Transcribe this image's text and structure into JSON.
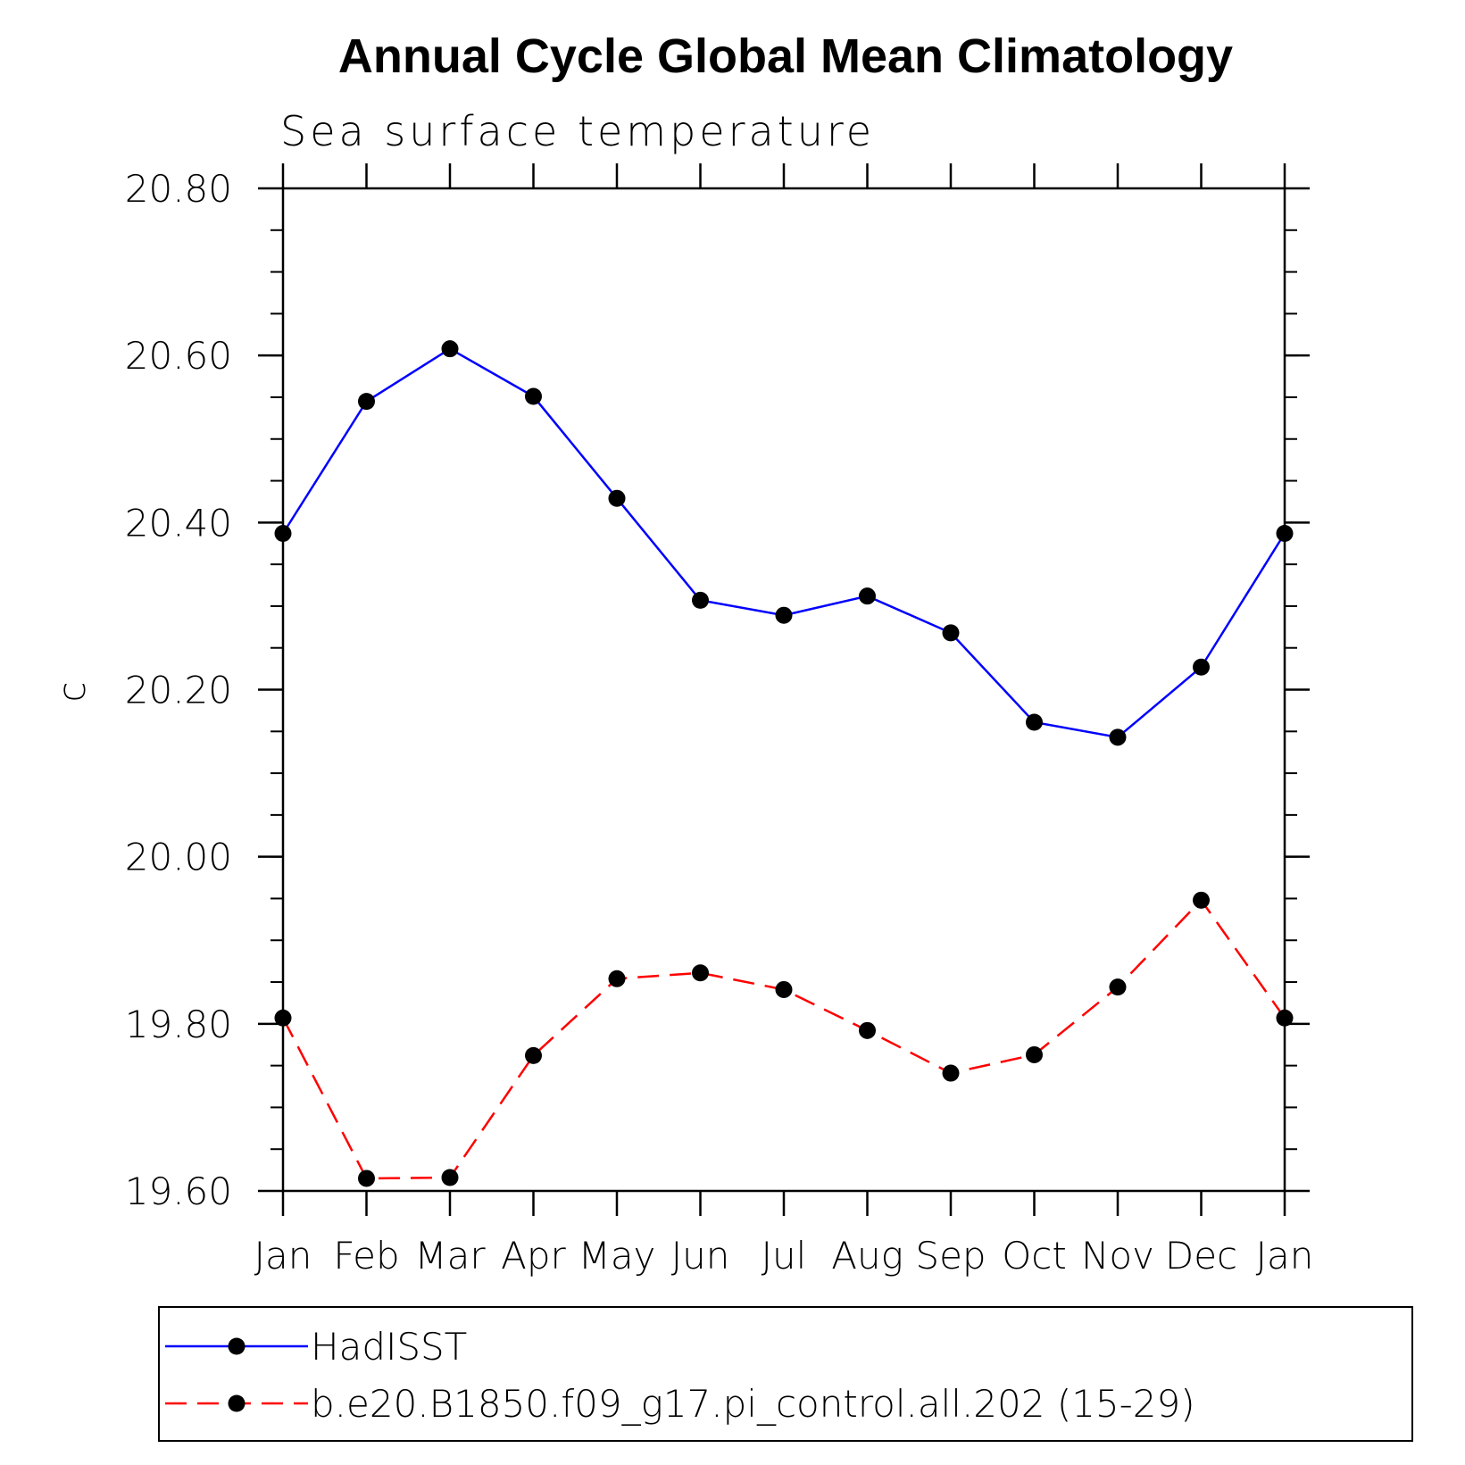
{
  "chart_data": {
    "type": "line",
    "title": "Annual Cycle Global Mean Climatology",
    "subtitle": "Sea surface temperature",
    "xlabel": "",
    "ylabel": "c",
    "categories": [
      "Jan",
      "Feb",
      "Mar",
      "Apr",
      "May",
      "Jun",
      "Jul",
      "Aug",
      "Sep",
      "Oct",
      "Nov",
      "Dec",
      "Jan"
    ],
    "ylim": [
      19.6,
      20.8
    ],
    "yticks": [
      19.6,
      19.8,
      20.0,
      20.2,
      20.4,
      20.6,
      20.8
    ],
    "ytick_labels": [
      "19.60",
      "19.80",
      "20.00",
      "20.20",
      "20.40",
      "20.60",
      "20.80"
    ],
    "grid": false,
    "legend_position": "bottom",
    "series": [
      {
        "name": "HadISST",
        "color": "#0000ff",
        "line_style": "solid",
        "marker": "filled-circle",
        "values": [
          20.387,
          20.545,
          20.608,
          20.551,
          20.429,
          20.307,
          20.289,
          20.312,
          20.268,
          20.161,
          20.143,
          20.227,
          20.387
        ]
      },
      {
        "name": "b.e20.B1850.f09_g17.pi_control.all.202 (15-29)",
        "color": "#ff0000",
        "line_style": "dashed",
        "marker": "filled-circle",
        "values": [
          19.807,
          19.615,
          19.616,
          19.762,
          19.854,
          19.861,
          19.841,
          19.792,
          19.741,
          19.763,
          19.844,
          19.948,
          19.807
        ]
      }
    ]
  }
}
